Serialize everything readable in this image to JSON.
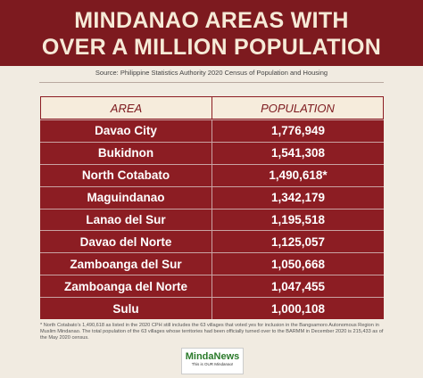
{
  "header": {
    "title_lines": [
      "MINDANAO AREAS WITH",
      "OVER A MILLION POPULATION"
    ],
    "source": "Source: Philippine Statistics Authority 2020 Census of Population and Housing"
  },
  "table": {
    "columns": [
      "AREA",
      "POPULATION"
    ],
    "rows": [
      [
        "Davao City",
        "1,776,949"
      ],
      [
        "Bukidnon",
        "1,541,308"
      ],
      [
        "North Cotabato",
        "1,490,618*"
      ],
      [
        "Maguindanao",
        "1,342,179"
      ],
      [
        "Lanao del Sur",
        "1,195,518"
      ],
      [
        "Davao del Norte",
        "1,125,057"
      ],
      [
        "Zamboanga del Sur",
        "1,050,668"
      ],
      [
        "Zamboanga del Norte",
        "1,047,455"
      ],
      [
        "Sulu",
        "1,000,108"
      ]
    ]
  },
  "footnote": "* North Cotabato's 1,490,618 as listed in the 2020 CPH still includes the 63 villages that voted yes for inclusion in the Bangsamoro Autonomous Region in Muslim Mindanao. The total population of the 63 villages whose territories had been officially turned over to the BARMM in December 2020 is 215,433 as of the May 2020 census.",
  "logo": {
    "name": "MindaNews",
    "tagline": "This is OUR Mindanao!"
  }
}
